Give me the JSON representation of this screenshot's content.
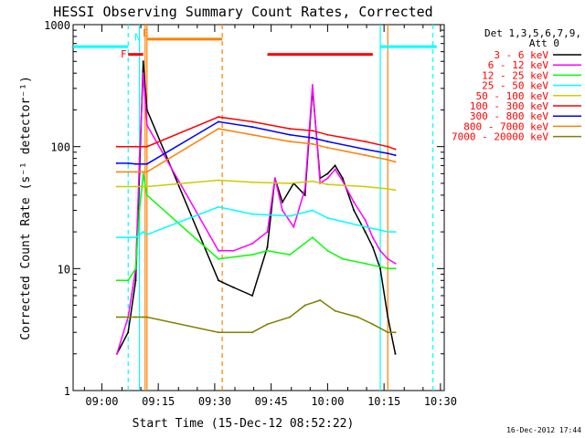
{
  "chart_data": {
    "type": "line",
    "title": "HESSI Observing Summary Count Rates, Corrected",
    "xlabel": "Start Time (15-Dec-12 08:52:22)",
    "ylabel": "Corrected Count Rate (s⁻¹ detector⁻¹)",
    "y_scale": "log",
    "ylim": [
      1,
      1000
    ],
    "xlim": [
      "08:52:22",
      "10:31:00"
    ],
    "x_ticks": [
      "09:00",
      "09:15",
      "09:30",
      "09:45",
      "10:00",
      "10:15",
      "10:30"
    ],
    "y_ticks": [
      "1",
      "10",
      "100",
      "1000"
    ],
    "legend_header": [
      "Det 1,3,5,6,7,9,",
      "Att 0"
    ],
    "legend_position": "right",
    "timestamp": "16-Dec-2012 17:44",
    "series": [
      {
        "name": "3 - 6 keV",
        "color": "#000000",
        "x": [
          "09:04",
          "09:07",
          "09:09",
          "09:10",
          "09:11",
          "09:12",
          "09:31",
          "09:35",
          "09:40",
          "09:44",
          "09:46",
          "09:48",
          "09:51",
          "09:54",
          "09:56",
          "09:58",
          "10:00",
          "10:02",
          "10:04",
          "10:07",
          "10:10",
          "10:12",
          "10:14",
          "10:16",
          "10:18"
        ],
        "y": [
          2,
          3,
          8,
          60,
          500,
          200,
          8,
          7,
          6,
          15,
          55,
          35,
          50,
          40,
          300,
          55,
          60,
          70,
          55,
          30,
          20,
          15,
          10,
          4,
          2
        ]
      },
      {
        "name": "6 - 12 keV",
        "color": "#ff00ff",
        "x": [
          "09:04",
          "09:07",
          "09:09",
          "09:10",
          "09:11",
          "09:12",
          "09:31",
          "09:35",
          "09:40",
          "09:44",
          "09:46",
          "09:48",
          "09:51",
          "09:54",
          "09:56",
          "09:58",
          "10:00",
          "10:02",
          "10:04",
          "10:07",
          "10:10",
          "10:12",
          "10:14",
          "10:16",
          "10:18"
        ],
        "y": [
          2,
          4,
          10,
          80,
          400,
          150,
          14,
          14,
          16,
          20,
          55,
          30,
          22,
          45,
          320,
          50,
          55,
          65,
          52,
          35,
          25,
          18,
          14,
          12,
          11
        ]
      },
      {
        "name": "12 - 25 keV",
        "color": "#00ff00",
        "x": [
          "09:04",
          "09:07",
          "09:09",
          "09:10",
          "09:11",
          "09:12",
          "09:31",
          "09:40",
          "09:44",
          "09:50",
          "09:56",
          "10:00",
          "10:04",
          "10:10",
          "10:16",
          "10:18"
        ],
        "y": [
          8,
          8,
          10,
          30,
          60,
          40,
          12,
          13,
          14,
          13,
          18,
          14,
          12,
          11,
          10,
          10
        ]
      },
      {
        "name": "25 - 50 keV",
        "color": "#00ffff",
        "x": [
          "09:04",
          "09:07",
          "09:09",
          "09:11",
          "09:12",
          "09:31",
          "09:40",
          "09:50",
          "09:56",
          "10:00",
          "10:10",
          "10:16",
          "10:18"
        ],
        "y": [
          18,
          18,
          18,
          20,
          19,
          32,
          28,
          27,
          30,
          26,
          22,
          20,
          20
        ]
      },
      {
        "name": "50 - 100 keV",
        "color": "#cccc00",
        "x": [
          "09:04",
          "09:07",
          "09:09",
          "09:11",
          "09:12",
          "09:31",
          "09:40",
          "09:50",
          "09:56",
          "10:00",
          "10:10",
          "10:16",
          "10:18"
        ],
        "y": [
          47,
          47,
          47,
          47,
          47,
          53,
          51,
          50,
          52,
          49,
          47,
          45,
          44
        ]
      },
      {
        "name": "100 - 300 keV",
        "color": "#ff0000",
        "x": [
          "09:04",
          "09:07",
          "09:09",
          "09:11",
          "09:12",
          "09:31",
          "09:40",
          "09:50",
          "09:56",
          "10:00",
          "10:10",
          "10:16",
          "10:18"
        ],
        "y": [
          100,
          100,
          100,
          100,
          100,
          175,
          160,
          140,
          135,
          125,
          110,
          100,
          95
        ]
      },
      {
        "name": "300 - 800 keV",
        "color": "#0000ff",
        "x": [
          "09:04",
          "09:07",
          "09:09",
          "09:11",
          "09:12",
          "09:31",
          "09:40",
          "09:50",
          "09:56",
          "10:00",
          "10:10",
          "10:16",
          "10:18"
        ],
        "y": [
          73,
          73,
          72,
          72,
          72,
          160,
          145,
          125,
          118,
          110,
          95,
          88,
          85
        ]
      },
      {
        "name": "800 - 7000 keV",
        "color": "#ff8000",
        "x": [
          "09:04",
          "09:07",
          "09:09",
          "09:11",
          "09:12",
          "09:31",
          "09:40",
          "09:50",
          "09:56",
          "10:00",
          "10:10",
          "10:16",
          "10:18"
        ],
        "y": [
          62,
          62,
          62,
          62,
          62,
          140,
          125,
          110,
          105,
          98,
          85,
          78,
          75
        ]
      },
      {
        "name": "7000 - 20000 keV",
        "color": "#808000",
        "x": [
          "09:04",
          "09:07",
          "09:09",
          "09:11",
          "09:12",
          "09:31",
          "09:40",
          "09:44",
          "09:50",
          "09:54",
          "09:58",
          "10:02",
          "10:08",
          "10:12",
          "10:16",
          "10:18"
        ],
        "y": [
          4,
          4,
          4,
          4,
          4,
          3,
          3,
          3.5,
          4,
          5,
          5.5,
          4.5,
          4,
          3.5,
          3,
          3
        ]
      }
    ]
  },
  "annotations": {
    "flag_f": "F",
    "flag_n": "N",
    "flag_e": "E"
  }
}
